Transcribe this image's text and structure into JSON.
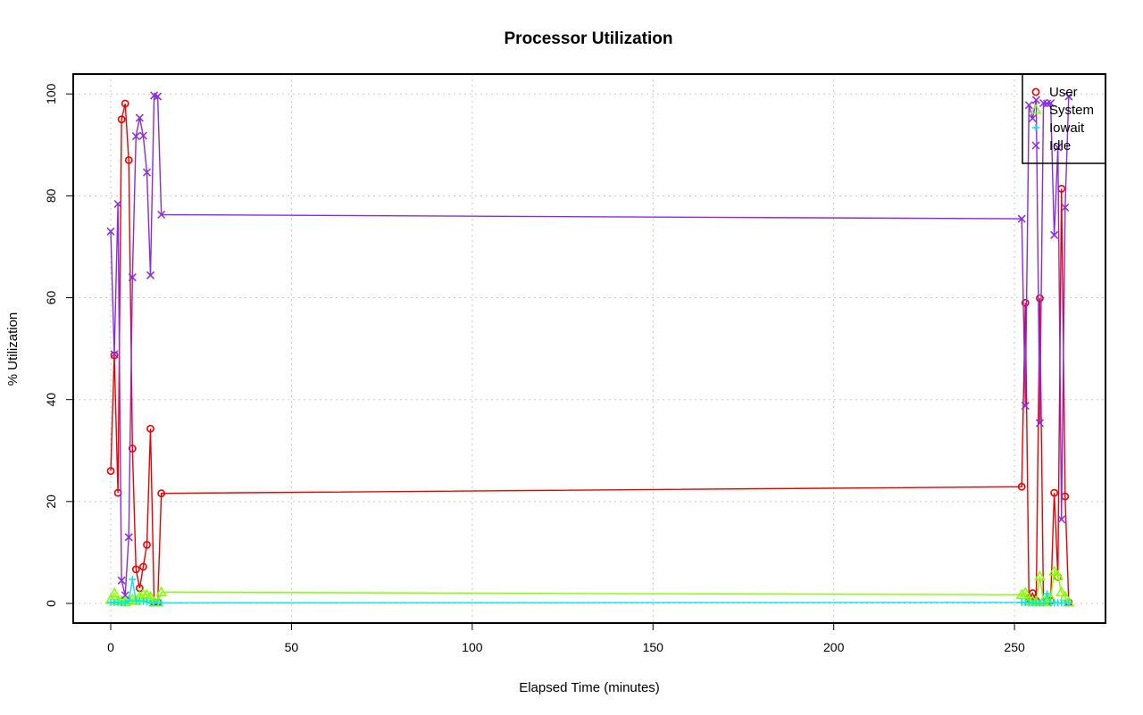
{
  "chart_data": {
    "type": "line",
    "title": "Processor Utilization",
    "xlabel": "Elapsed Time (minutes)",
    "ylabel": "% Utilization",
    "xlim": [
      -10,
      275
    ],
    "ylim": [
      -4,
      104
    ],
    "xticks": [
      0,
      50,
      100,
      150,
      200,
      250
    ],
    "yticks": [
      0,
      20,
      40,
      60,
      80,
      100
    ],
    "grid": true,
    "legend_position": "top-right",
    "series": [
      {
        "name": "User",
        "color": "#ee0000",
        "marker": "circle",
        "points": [
          [
            0,
            26
          ],
          [
            1,
            48.7
          ],
          [
            2,
            21.7
          ],
          [
            3,
            95
          ],
          [
            4,
            98.1
          ],
          [
            5,
            87
          ],
          [
            6,
            30.4
          ],
          [
            7,
            6.7
          ],
          [
            8,
            3
          ],
          [
            9,
            7.2
          ],
          [
            10,
            11.5
          ],
          [
            11,
            34.3
          ],
          [
            12,
            0.2
          ],
          [
            13,
            0.2
          ],
          [
            14,
            21.6
          ],
          [
            252,
            22.9
          ],
          [
            253,
            59
          ],
          [
            254,
            1
          ],
          [
            255,
            2
          ],
          [
            256,
            0.5
          ],
          [
            257,
            59.9
          ],
          [
            258,
            0.2
          ],
          [
            259,
            0.4
          ],
          [
            260,
            0.5
          ],
          [
            261,
            21.7
          ],
          [
            262,
            5.2
          ],
          [
            263,
            81.4
          ],
          [
            264,
            21
          ],
          [
            265,
            0.2
          ]
        ]
      },
      {
        "name": "System",
        "color": "#7fff00",
        "marker": "triangle",
        "points": [
          [
            0,
            0.7
          ],
          [
            1,
            2
          ],
          [
            2,
            0.5
          ],
          [
            3,
            0.5
          ],
          [
            4,
            0.3
          ],
          [
            5,
            0.6
          ],
          [
            6,
            0.8
          ],
          [
            7,
            0.5
          ],
          [
            8,
            1.3
          ],
          [
            9,
            1.8
          ],
          [
            10,
            1.7
          ],
          [
            11,
            1.3
          ],
          [
            12,
            0.2
          ],
          [
            13,
            0.2
          ],
          [
            14,
            2.2
          ],
          [
            252,
            1.7
          ],
          [
            253,
            2.1
          ],
          [
            254,
            0.4
          ],
          [
            255,
            0.5
          ],
          [
            256,
            0.3
          ],
          [
            257,
            5.3
          ],
          [
            258,
            0.5
          ],
          [
            259,
            0.3
          ],
          [
            260,
            1
          ],
          [
            261,
            6.3
          ],
          [
            262,
            5.4
          ],
          [
            263,
            2.2
          ],
          [
            264,
            1.3
          ],
          [
            265,
            0.2
          ]
        ]
      },
      {
        "name": "Iowait",
        "color": "#00e5ee",
        "marker": "plus",
        "points": [
          [
            0,
            0.2
          ],
          [
            1,
            0.2
          ],
          [
            2,
            0.2
          ],
          [
            3,
            0.1
          ],
          [
            4,
            0.1
          ],
          [
            5,
            0.5
          ],
          [
            6,
            4.7
          ],
          [
            7,
            0.5
          ],
          [
            8,
            0.4
          ],
          [
            9,
            0.4
          ],
          [
            10,
            0.3
          ],
          [
            11,
            0.1
          ],
          [
            12,
            0.1
          ],
          [
            13,
            0.1
          ],
          [
            14,
            0.1
          ],
          [
            252,
            0.2
          ],
          [
            253,
            0.2
          ],
          [
            254,
            0.1
          ],
          [
            255,
            0.1
          ],
          [
            256,
            0.1
          ],
          [
            257,
            0.1
          ],
          [
            258,
            0.1
          ],
          [
            259,
            1.9
          ],
          [
            260,
            0.1
          ],
          [
            261,
            0.1
          ],
          [
            262,
            0.1
          ],
          [
            263,
            0.1
          ],
          [
            264,
            0.1
          ],
          [
            265,
            0.1
          ]
        ]
      },
      {
        "name": "Idle",
        "color": "#8a2be2",
        "marker": "x",
        "points": [
          [
            0,
            73
          ],
          [
            1,
            48.9
          ],
          [
            2,
            78.4
          ],
          [
            3,
            4.5
          ],
          [
            4,
            1.6
          ],
          [
            5,
            13
          ],
          [
            6,
            64
          ],
          [
            7,
            91.7
          ],
          [
            8,
            95.3
          ],
          [
            9,
            91.8
          ],
          [
            10,
            84.6
          ],
          [
            11,
            64.4
          ],
          [
            12,
            99.7
          ],
          [
            13,
            99.5
          ],
          [
            14,
            76.3
          ],
          [
            252,
            75.5
          ],
          [
            253,
            38.8
          ],
          [
            254,
            97.8
          ],
          [
            255,
            95.2
          ],
          [
            256,
            98.8
          ],
          [
            257,
            35.4
          ],
          [
            258,
            98.2
          ],
          [
            259,
            98.1
          ],
          [
            260,
            98.2
          ],
          [
            261,
            72.3
          ],
          [
            262,
            89.5
          ],
          [
            263,
            16.5
          ],
          [
            264,
            77.7
          ],
          [
            265,
            99.5
          ]
        ]
      }
    ]
  }
}
